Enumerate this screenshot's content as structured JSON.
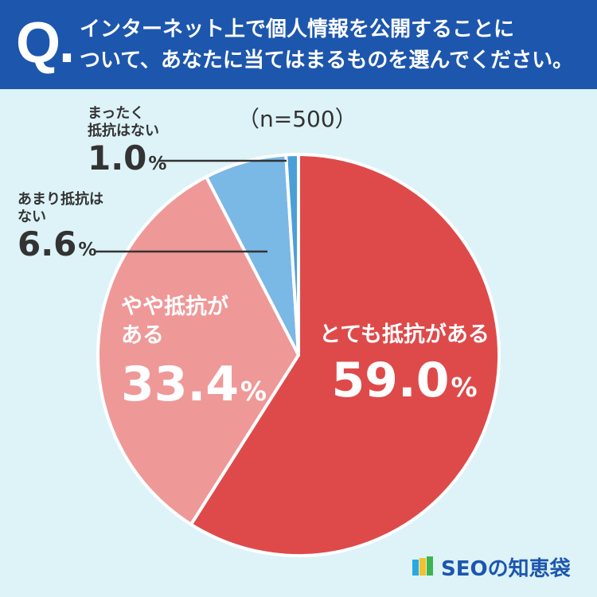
{
  "header": {
    "q_mark": "Q.",
    "question_line1": "インターネット上で個人情報を公開することに",
    "question_line2": "ついて、あなたに当てはまるものを選んでください。"
  },
  "sample_size": "（n=500）",
  "chart_data": {
    "type": "pie",
    "start": "12 o'clock, clockwise",
    "slices": [
      {
        "label_line1": "とても抵抗がある",
        "label_line2": "",
        "value": 59.0,
        "display": "59.0",
        "color": "#de4a4a"
      },
      {
        "label_line1": "やや抵抗が",
        "label_line2": "ある",
        "value": 33.4,
        "display": "33.4",
        "color": "#ef9898"
      },
      {
        "label_line1": "あまり抵抗は",
        "label_line2": "ない",
        "value": 6.6,
        "display": "6.6",
        "color": "#7ab8e6"
      },
      {
        "label_line1": "まったく",
        "label_line2": "抵抗はない",
        "value": 1.0,
        "display": "1.0",
        "color": "#4a9fd9"
      }
    ],
    "unit": "%"
  },
  "logo": {
    "text": "SEOの知恵袋",
    "colors": [
      "#29a9e0",
      "#f2c12e",
      "#3fb34f"
    ]
  }
}
